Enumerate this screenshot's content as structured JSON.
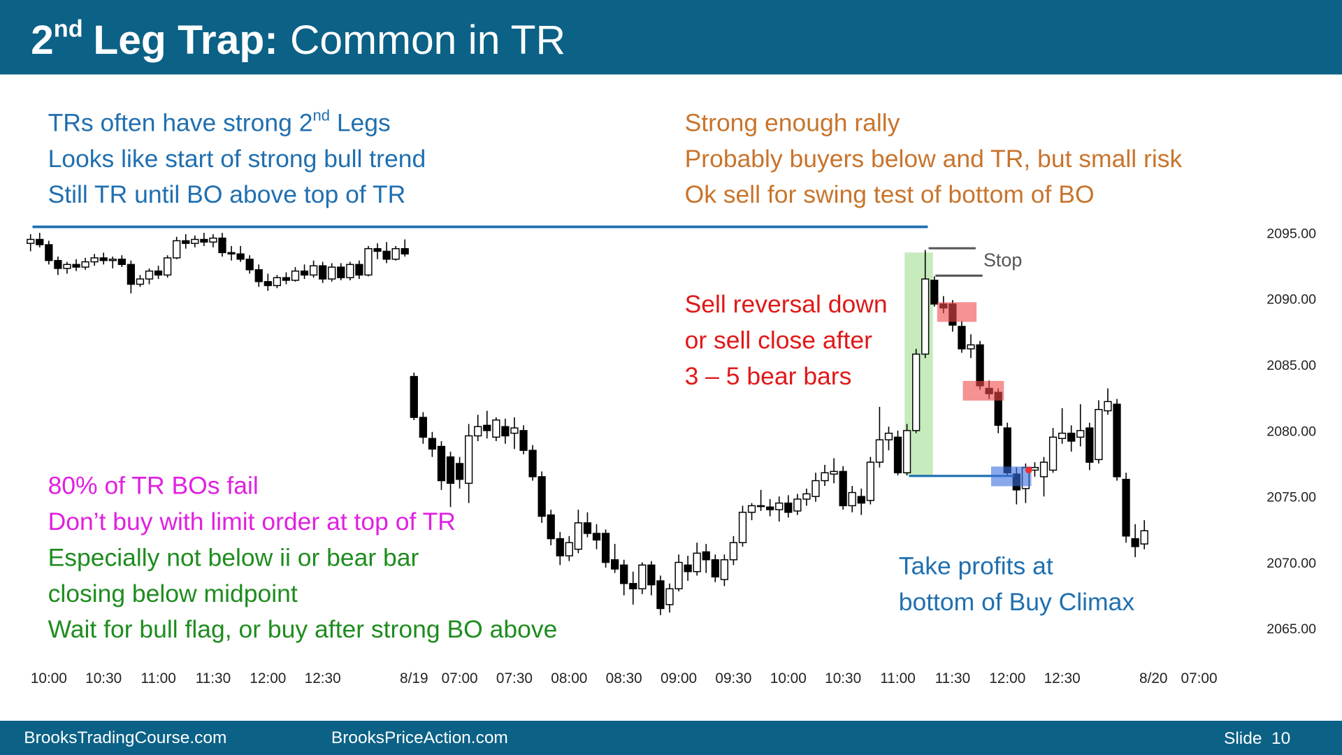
{
  "header": {
    "title": [
      "2",
      "nd",
      "Leg Trap:",
      "Common in TR"
    ]
  },
  "notes": {
    "top_left": [
      [
        "TRs often have strong 2",
        "nd",
        " Legs"
      ],
      [
        "Looks like start of strong bull trend"
      ],
      [
        "Still TR until BO above top of TR"
      ]
    ],
    "top_right": [
      "Strong enough rally",
      "Probably buyers below and TR, but small risk",
      "Ok sell for swing test of bottom of BO"
    ],
    "bottom_left_magenta": [
      "80% of TR BOs fail",
      "Don’t buy with limit order at top of TR"
    ],
    "bottom_left_green": [
      "Especially not below ii or bear bar",
      "closing below midpoint",
      "Wait for bull flag, or buy after strong BO above"
    ],
    "sell": [
      "Sell reversal down",
      "or sell close after",
      "3 – 5 bear bars"
    ],
    "stop": "Stop",
    "take_profits": [
      "Take profits at",
      "bottom of Buy Climax"
    ]
  },
  "footer": {
    "left": "BrooksTradingCourse.com",
    "center": "BrooksPriceAction.com",
    "slide": "Slide  10"
  },
  "chart_data": {
    "type": "candlestick",
    "up_color": "#ffffff",
    "down_color": "#000000",
    "ylim": [
      2062,
      2096
    ],
    "yticks": [
      {
        "value": 2095,
        "label": "2095.00"
      },
      {
        "value": 2090,
        "label": "2090.00"
      },
      {
        "value": 2085,
        "label": "2085.00"
      },
      {
        "value": 2080,
        "label": "2080.00"
      },
      {
        "value": 2075,
        "label": "2075.00"
      },
      {
        "value": 2070,
        "label": "2070.00"
      },
      {
        "value": 2065,
        "label": "2065.00"
      }
    ],
    "categories": [
      null,
      null,
      "10:00",
      null,
      null,
      null,
      null,
      null,
      "10:30",
      null,
      null,
      null,
      null,
      null,
      "11:00",
      null,
      null,
      null,
      null,
      null,
      "11:30",
      null,
      null,
      null,
      null,
      null,
      "12:00",
      null,
      null,
      null,
      null,
      null,
      "12:30",
      null,
      null,
      null,
      null,
      null,
      null,
      null,
      null,
      null,
      "8/19",
      null,
      null,
      null,
      null,
      "07:00",
      null,
      null,
      null,
      null,
      null,
      "07:30",
      null,
      null,
      null,
      null,
      null,
      "08:00",
      null,
      null,
      null,
      null,
      null,
      "08:30",
      null,
      null,
      null,
      null,
      null,
      "09:00",
      null,
      null,
      null,
      null,
      null,
      "09:30",
      null,
      null,
      null,
      null,
      null,
      "10:00",
      null,
      null,
      null,
      null,
      null,
      "10:30",
      null,
      null,
      null,
      null,
      null,
      "11:00",
      null,
      null,
      null,
      null,
      null,
      "11:30",
      null,
      null,
      null,
      null,
      null,
      "12:00",
      null,
      null,
      null,
      null,
      null,
      "12:30",
      null,
      null,
      null,
      null,
      null,
      null,
      null,
      null,
      null,
      "8/20",
      null,
      null,
      null,
      null,
      "07:00"
    ],
    "open": [
      2094.2,
      2094.5,
      2094.1,
      2092.9,
      2092.3,
      2092.6,
      2092.4,
      2092.8,
      2093.1,
      2092.9,
      2093.0,
      2092.6,
      2091.1,
      2091.5,
      2092.1,
      2091.8,
      2093.1,
      2094.4,
      2094.2,
      2094.5,
      2094.3,
      2094.6,
      2093.5,
      2093.4,
      2093.0,
      2092.2,
      2091.3,
      2091.0,
      2091.6,
      2091.4,
      2092.1,
      2091.8,
      2092.5,
      2091.5,
      2092.4,
      2091.6,
      2092.6,
      2091.8,
      2093.8,
      2093.6,
      2093.0,
      2093.8,
      2084.1,
      2081.0,
      2079.4,
      2078.8,
      2078.0,
      2077.5,
      2076.0,
      2079.6,
      2080.4,
      2079.5,
      2080.3,
      2079.8,
      2080.0,
      2078.5,
      2076.5,
      2073.6,
      2071.8,
      2070.5,
      2071.0,
      2073.0,
      2072.2,
      2072.2,
      2070.2,
      2069.8,
      2068.4,
      2068.0,
      2069.8,
      2068.6,
      2066.8,
      2068.0,
      2069.8,
      2069.3,
      2070.8,
      2070.2,
      2068.7,
      2070.2,
      2071.5,
      2073.8,
      2074.3,
      2074.2,
      2074.0,
      2074.5,
      2073.9,
      2074.8,
      2075.0,
      2076.2,
      2076.7,
      2076.9,
      2074.3,
      2075.0,
      2074.7,
      2077.6,
      2079.3,
      2079.5,
      2076.8,
      2080.0,
      2085.8,
      2091.4,
      2089.6,
      2089.6,
      2087.9,
      2086.2,
      2086.5,
      2083.2,
      2082.9,
      2080.2,
      2076.7,
      2075.6,
      2077.0,
      2076.5,
      2077.0,
      2079.4,
      2079.8,
      2079.5,
      2080.2,
      2077.8,
      2081.5,
      2082.0,
      2076.3,
      2071.8,
      2071.4,
      null,
      null,
      null,
      null,
      null,
      null
    ],
    "high": [
      2094.9,
      2095.0,
      2094.4,
      2093.2,
      2092.8,
      2093.0,
      2093.1,
      2093.4,
      2093.5,
      2093.2,
      2093.3,
      2092.9,
      2091.8,
      2092.3,
      2092.5,
      2093.3,
      2094.7,
      2094.9,
      2094.8,
      2095.0,
      2094.9,
      2095.0,
      2094.0,
      2094.0,
      2093.3,
      2092.6,
      2091.9,
      2091.8,
      2092.0,
      2092.4,
      2092.6,
      2092.9,
      2092.8,
      2092.7,
      2092.7,
      2092.8,
      2092.9,
      2094.0,
      2094.2,
      2094.3,
      2094.0,
      2094.5,
      2084.4,
      2081.4,
      2079.9,
      2079.2,
      2078.4,
      2078.0,
      2080.5,
      2081.2,
      2081.5,
      2081.0,
      2080.9,
      2081.0,
      2080.4,
      2078.9,
      2076.9,
      2074.0,
      2072.3,
      2072.0,
      2074.0,
      2073.8,
      2072.9,
      2072.5,
      2071.4,
      2070.2,
      2069.3,
      2070.0,
      2070.1,
      2069.0,
      2068.4,
      2070.6,
      2070.5,
      2071.5,
      2071.4,
      2070.6,
      2070.6,
      2072.0,
      2074.3,
      2074.5,
      2075.5,
      2074.8,
      2075.0,
      2075.1,
      2075.2,
      2075.6,
      2076.8,
      2077.4,
      2077.9,
      2077.3,
      2075.8,
      2075.6,
      2078.0,
      2081.8,
      2080.3,
      2080.0,
      2080.5,
      2086.2,
      2093.7,
      2091.7,
      2090.2,
      2089.9,
      2088.3,
      2087.3,
      2086.8,
      2083.8,
      2083.2,
      2080.6,
      2077.2,
      2077.5,
      2077.6,
      2078.0,
      2080.2,
      2081.7,
      2080.4,
      2082.0,
      2080.6,
      2082.3,
      2083.2,
      2082.4,
      2076.8,
      2072.9,
      2073.2,
      null,
      null,
      null,
      null,
      null,
      null
    ],
    "low": [
      2093.6,
      2093.9,
      2092.6,
      2091.8,
      2091.9,
      2092.1,
      2092.2,
      2092.5,
      2092.6,
      2092.3,
      2092.4,
      2090.4,
      2090.9,
      2091.1,
      2091.5,
      2091.6,
      2093.0,
      2093.8,
      2093.9,
      2094.0,
      2093.9,
      2093.2,
      2092.9,
      2092.8,
      2091.9,
      2090.9,
      2090.6,
      2090.8,
      2091.1,
      2091.3,
      2091.5,
      2091.6,
      2091.2,
      2091.3,
      2091.4,
      2091.4,
      2091.5,
      2091.7,
      2093.0,
      2092.7,
      2092.9,
      2093.2,
      2080.8,
      2079.0,
      2078.0,
      2075.5,
      2074.2,
      2075.6,
      2074.5,
      2079.2,
      2079.4,
      2079.2,
      2079.0,
      2078.6,
      2078.2,
      2076.2,
      2073.0,
      2071.3,
      2069.8,
      2070.1,
      2070.7,
      2071.9,
      2071.0,
      2069.6,
      2069.2,
      2067.5,
      2066.8,
      2067.6,
      2067.5,
      2066.0,
      2066.2,
      2067.8,
      2068.6,
      2069.0,
      2069.2,
      2068.5,
      2068.2,
      2069.8,
      2071.2,
      2073.2,
      2073.9,
      2073.5,
      2073.1,
      2073.4,
      2073.6,
      2074.3,
      2074.6,
      2075.8,
      2076.0,
      2074.0,
      2073.8,
      2073.6,
      2074.4,
      2077.2,
      2078.5,
      2076.6,
      2076.6,
      2079.8,
      2085.5,
      2089.4,
      2088.9,
      2087.5,
      2085.9,
      2085.5,
      2083.1,
      2082.4,
      2079.8,
      2076.6,
      2074.4,
      2074.5,
      2076.5,
      2075.0,
      2076.8,
      2079.0,
      2078.4,
      2078.8,
      2077.0,
      2077.5,
      2081.2,
      2076.2,
      2071.5,
      2070.4,
      2071.0,
      null,
      null,
      null,
      null,
      null,
      null
    ],
    "close": [
      2094.5,
      2094.1,
      2092.9,
      2092.3,
      2092.6,
      2092.4,
      2092.8,
      2093.1,
      2092.9,
      2093.0,
      2092.6,
      2091.1,
      2091.5,
      2092.1,
      2091.8,
      2093.1,
      2094.4,
      2094.2,
      2094.5,
      2094.3,
      2094.6,
      2093.5,
      2093.4,
      2093.0,
      2092.2,
      2091.3,
      2091.0,
      2091.6,
      2091.4,
      2092.1,
      2091.8,
      2092.5,
      2091.5,
      2092.4,
      2091.6,
      2092.6,
      2091.8,
      2093.8,
      2093.6,
      2093.0,
      2093.8,
      2093.4,
      2081.0,
      2079.5,
      2078.6,
      2076.2,
      2076.0,
      2076.3,
      2079.6,
      2080.3,
      2080.0,
      2080.8,
      2079.6,
      2080.2,
      2078.5,
      2076.5,
      2073.5,
      2071.8,
      2070.5,
      2071.5,
      2073.0,
      2072.2,
      2071.7,
      2070.0,
      2069.5,
      2068.4,
      2068.0,
      2069.8,
      2068.3,
      2066.5,
      2068.0,
      2070.0,
      2069.3,
      2070.7,
      2070.2,
      2068.9,
      2070.2,
      2071.5,
      2073.8,
      2074.3,
      2074.3,
      2074.0,
      2074.5,
      2073.8,
      2074.8,
      2075.2,
      2076.2,
      2076.8,
      2076.9,
      2074.3,
      2075.3,
      2074.5,
      2077.6,
      2079.3,
      2079.8,
      2076.8,
      2080.0,
      2085.8,
      2091.5,
      2089.6,
      2089.3,
      2088.0,
      2086.2,
      2086.5,
      2083.4,
      2082.8,
      2080.4,
      2076.8,
      2075.5,
      2077.2,
      2077.2,
      2077.6,
      2079.5,
      2079.8,
      2079.2,
      2080.0,
      2077.6,
      2081.6,
      2082.2,
      2076.5,
      2072.0,
      2071.2,
      2072.4,
      null,
      null,
      null,
      null,
      null,
      null
    ]
  }
}
